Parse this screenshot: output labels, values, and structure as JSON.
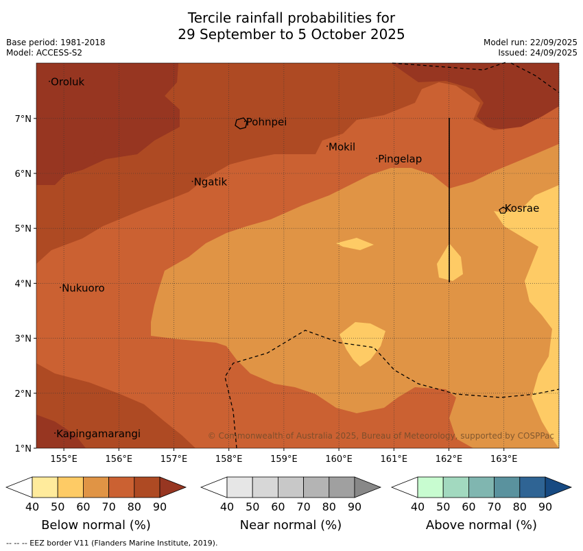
{
  "title": {
    "line1": "Tercile rainfall probabilities for",
    "line2": "29 September to 5 October 2025"
  },
  "meta": {
    "base_period": "Base period: 1981-2018",
    "model": "Model: ACCESS-S2",
    "model_run": "Model run: 22/09/2025",
    "issued": "Issued: 24/09/2025"
  },
  "map": {
    "lon_ticks": [
      "155°E",
      "156°E",
      "157°E",
      "158°E",
      "159°E",
      "160°E",
      "161°E",
      "162°E",
      "163°E"
    ],
    "lat_ticks": [
      "7°N",
      "6°N",
      "5°N",
      "4°N",
      "3°N",
      "2°N",
      "1°N"
    ],
    "places": [
      {
        "name": "Oroluk",
        "lon": 154.75,
        "lat": 7.6
      },
      {
        "name": "Pohnpei",
        "lon": 158.3,
        "lat": 6.87
      },
      {
        "name": "Mokil",
        "lon": 159.8,
        "lat": 6.42
      },
      {
        "name": "Pingelap",
        "lon": 160.7,
        "lat": 6.2
      },
      {
        "name": "Ngatik",
        "lon": 157.35,
        "lat": 5.78
      },
      {
        "name": "Kosrae",
        "lon": 163.0,
        "lat": 5.3
      },
      {
        "name": "Nukuoro",
        "lon": 154.95,
        "lat": 3.85
      },
      {
        "name": "Kapingamarangi",
        "lon": 154.85,
        "lat": 1.2
      }
    ],
    "copyright": "© Commonwealth of Australia 2025, Bureau of Meteorology, supported by COSPPac",
    "colors": {
      "below_40_50": "#ffeb9c",
      "below_50_60": "#fecb65",
      "below_60_70": "#e09445",
      "below_70_80": "#cb6132",
      "below_80_90": "#ae4a23",
      "below_90": "#973621"
    }
  },
  "colorbars": [
    {
      "label": "Below normal (%)",
      "ticks": [
        "40",
        "50",
        "60",
        "70",
        "80",
        "90"
      ],
      "colors": [
        "#ffeb9c",
        "#fecb65",
        "#e09445",
        "#cb6132",
        "#ae4a23",
        "#973621"
      ]
    },
    {
      "label": "Near normal (%)",
      "ticks": [
        "40",
        "50",
        "60",
        "70",
        "80",
        "90"
      ],
      "colors": [
        "#e6e6e6",
        "#d7d7d7",
        "#c8c8c8",
        "#b4b4b4",
        "#a0a0a0",
        "#888888"
      ]
    },
    {
      "label": "Above normal (%)",
      "ticks": [
        "40",
        "50",
        "60",
        "70",
        "80",
        "90"
      ],
      "colors": [
        "#c8fcd0",
        "#a2d9bf",
        "#80b6b0",
        "#5a929e",
        "#2f6494",
        "#174a82"
      ]
    }
  ],
  "footer": "-- -- -- EEZ border V11 (Flanders Marine Institute, 2019)."
}
